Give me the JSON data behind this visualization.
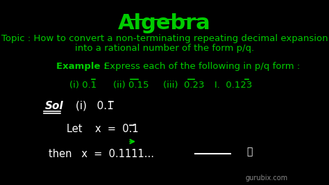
{
  "bg_color": "#000000",
  "title": "Algebra",
  "title_color": "#00cc00",
  "title_fontsize": 22,
  "topic_line1": "Topic : How to convert a non-terminating repeating decimal expansion",
  "topic_line2": "into a rational number of the form p/q.",
  "topic_color": "#00cc00",
  "topic_fontsize": 9.5,
  "example_label": "Example :",
  "example_text": "Express each of the following in p/q form :",
  "example_color": "#00cc00",
  "example_fontsize": 9.5,
  "items_color": "#00cc00",
  "sol_color": "#ffffff",
  "sol_fontsize": 11,
  "watermark": "gurubix.com",
  "watermark_color": "#888888",
  "watermark_fontsize": 7
}
